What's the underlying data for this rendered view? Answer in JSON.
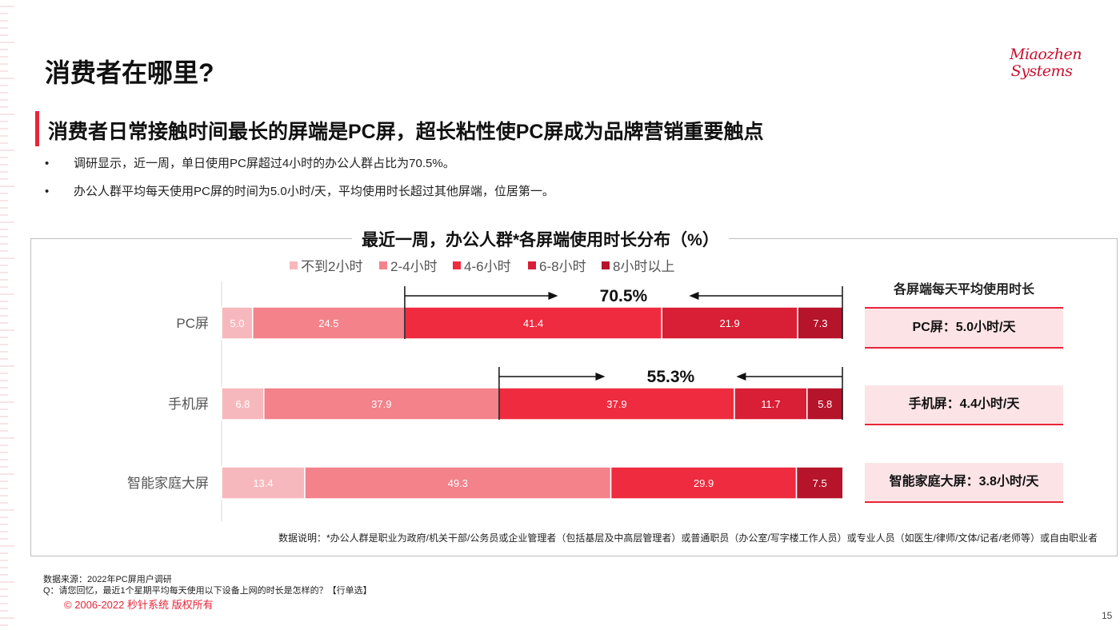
{
  "page": {
    "title": "消费者在哪里?",
    "logo_line1": "Miaozhen",
    "logo_line2": "Systems",
    "subtitle": "消费者日常接触时间最长的屏端是PC屏，超长粘性使PC屏成为品牌营销重要触点",
    "bullets": [
      "调研显示，近一周，单日使用PC屏超过4小时的办公人群占比为70.5%。",
      "办公人群平均每天使用PC屏的时间为5.0小时/天，平均使用时长超过其他屏端，位居第一。"
    ],
    "bullet_marker": "•",
    "note": "数据说明：*办公人群是职业为政府/机关干部/公务员或企业管理者（包括基层及中高层管理者）或普通职员（办公室/写字楼工作人员）或专业人员（如医生/律师/文体/记者/老师等）或自由职业者",
    "source": "数据来源：2022年PC屏用户调研",
    "question": "Q：请您回忆，最近1个星期平均每天使用以下设备上网的时长是怎样的？【行单选】",
    "copyright": "© 2006-2022 秒针系统 版权所有",
    "page_number": "15"
  },
  "side_panel": {
    "header": "各屏端每天平均使用时长",
    "items": [
      "PC屏：5.0小时/天",
      "手机屏：4.4小时/天",
      "智能家庭大屏：3.8小时/天"
    ]
  },
  "chart_data": {
    "type": "bar",
    "orientation": "horizontal",
    "stacked": true,
    "title": "最近一周，办公人群*各屏端使用时长分布（%）",
    "categories": [
      "PC屏",
      "手机屏",
      "智能家庭大屏"
    ],
    "series": [
      {
        "name": "不到2小时",
        "values": [
          5.0,
          6.8,
          13.4
        ],
        "color": "#f7b8bd"
      },
      {
        "name": "2-4小时",
        "values": [
          24.5,
          37.9,
          49.3
        ],
        "color": "#f3828b"
      },
      {
        "name": "4-6小时",
        "values": [
          41.4,
          37.9,
          29.9
        ],
        "color": "#ef2b3f"
      },
      {
        "name": "6-8小时",
        "values": [
          21.9,
          11.7,
          null
        ],
        "color": "#d81f35"
      },
      {
        "name": "8小时以上",
        "values": [
          7.3,
          5.8,
          7.5
        ],
        "color": "#b5142a"
      }
    ],
    "xlim": [
      0,
      100
    ],
    "legend_position": "top",
    "annotations": [
      {
        "category": "PC屏",
        "text": "70.5%",
        "from_series": "4-6小时"
      },
      {
        "category": "手机屏",
        "text": "55.3%",
        "from_series": "4-6小时"
      }
    ]
  }
}
